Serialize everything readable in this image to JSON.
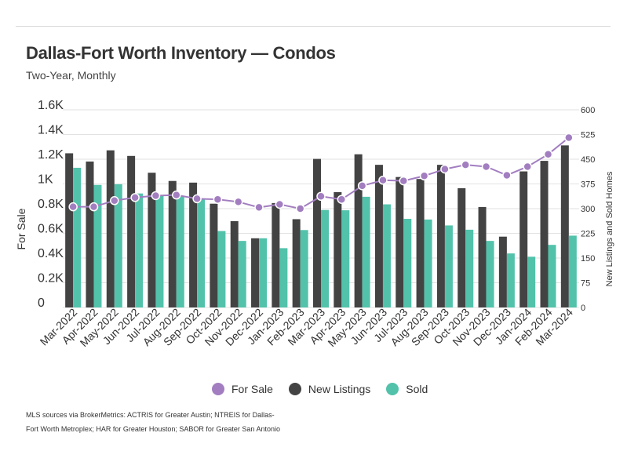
{
  "header": {
    "title": "Dallas-Fort Worth Inventory — Condos",
    "subtitle": "Two-Year, Monthly"
  },
  "colors": {
    "for_sale": "#a27ec0",
    "new_listings": "#434343",
    "sold": "#52c2ab",
    "grid": "#e2e2e2",
    "text": "#333333"
  },
  "legend": {
    "for_sale": "For Sale",
    "new_listings": "New Listings",
    "sold": "Sold"
  },
  "footer": {
    "source": "MLS sources via BrokerMetrics: ACTRIS for Greater Austin; NTREIS for Dallas-Fort Worth Metroplex; HAR for Greater Houston; SABOR for Greater San Antonio"
  },
  "chart_data": {
    "type": "bar",
    "ylabel": "For Sale",
    "y2label": "New Listings and Sold Homes",
    "ylim": [
      0,
      1600
    ],
    "y2lim": [
      0,
      600
    ],
    "y_ticks": [
      "0",
      "0.2K",
      "0.4K",
      "0.6K",
      "0.8K",
      "1K",
      "1.2K",
      "1.4K",
      "1.6K"
    ],
    "y2_ticks": [
      "0",
      "75",
      "150",
      "225",
      "300",
      "375",
      "450",
      "525",
      "600"
    ],
    "grid": true,
    "legend_position": "bottom",
    "categories": [
      "Mar-2022",
      "Apr-2022",
      "May-2022",
      "Jun-2022",
      "Jul-2022",
      "Aug-2022",
      "Sep-2022",
      "Oct-2022",
      "Nov-2022",
      "Dec-2022",
      "Jan-2023",
      "Feb-2023",
      "Mar-2023",
      "Apr-2023",
      "May-2023",
      "Jun-2023",
      "Jul-2023",
      "Aug-2023",
      "Sep-2023",
      "Oct-2023",
      "Nov-2023",
      "Dec-2023",
      "Jan-2024",
      "Feb-2024",
      "Mar-2024"
    ],
    "series": [
      {
        "name": "For Sale",
        "kind": "line",
        "axis": "left",
        "values": [
          815,
          815,
          865,
          890,
          905,
          910,
          880,
          875,
          855,
          810,
          835,
          800,
          900,
          875,
          985,
          1030,
          1025,
          1065,
          1120,
          1155,
          1140,
          1070,
          1140,
          1240,
          1375
        ]
      },
      {
        "name": "New Listings",
        "kind": "bar",
        "axis": "right",
        "values": [
          468,
          443,
          477,
          460,
          409,
          384,
          379,
          315,
          262,
          210,
          317,
          268,
          451,
          350,
          465,
          433,
          396,
          390,
          433,
          362,
          305,
          215,
          413,
          445,
          492
        ]
      },
      {
        "name": "Sold",
        "kind": "bar",
        "axis": "right",
        "values": [
          424,
          372,
          374,
          346,
          339,
          339,
          329,
          232,
          202,
          210,
          180,
          235,
          296,
          295,
          336,
          313,
          269,
          267,
          249,
          236,
          202,
          164,
          154,
          190,
          218
        ]
      }
    ]
  }
}
